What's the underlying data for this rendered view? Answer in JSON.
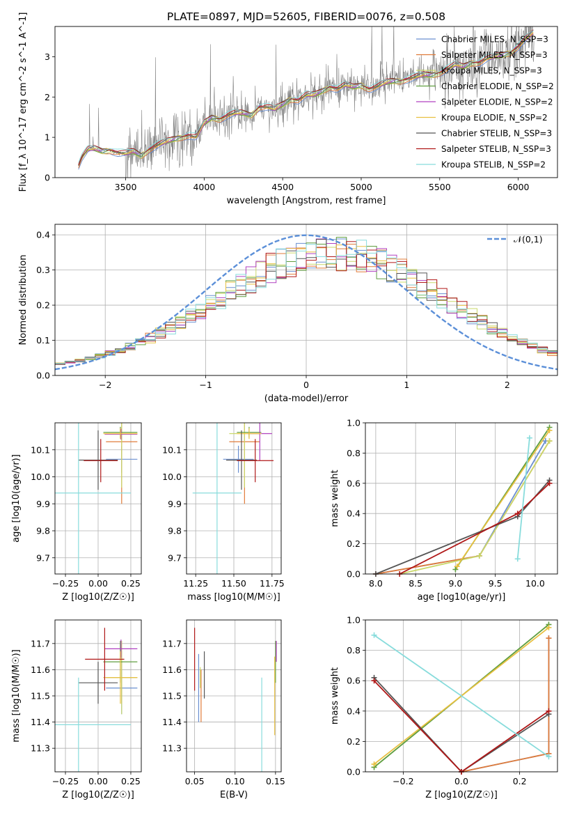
{
  "figure_title": "PLATE=0897, MJD=52605, FIBERID=0076, z=0.508",
  "colors": {
    "chabrier_miles": "#6a8fd0",
    "salpeter_miles": "#e07b39",
    "kroupa_miles": "#c9d86a",
    "chabrier_elodie": "#5f9e3f",
    "salpeter_elodie": "#b040c0",
    "kroupa_elodie": "#e8c040",
    "chabrier_stelib": "#555555",
    "salpeter_stelib": "#b01818",
    "kroupa_stelib": "#88dcdc",
    "normal": "#5b8fd8",
    "data": "#808080"
  },
  "chart_data": [
    {
      "id": "spectrum",
      "type": "line",
      "title": "PLATE=0897, MJD=52605, FIBERID=0076, z=0.508",
      "xlabel": "wavelength [Angstrom, rest frame]",
      "ylabel": "Flux [f_λ 10^-17 erg cm^-2 s^-1 A^-1]",
      "xlim": [
        3050,
        6250
      ],
      "ylim": [
        0,
        3.75
      ],
      "xticks": [
        3500,
        4000,
        4500,
        5000,
        5500,
        6000
      ],
      "yticks": [
        0,
        1,
        2,
        3
      ],
      "grid": false,
      "legend_position": "right",
      "legend": [
        "Chabrier MILES, N_SSP=3",
        "Salpeter MILES, N_SSP=3",
        "Kroupa MILES, N_SSP=3",
        "Chabrier ELODIE, N_SSP=2",
        "Salpeter ELODIE, N_SSP=2",
        "Kroupa ELODIE, N_SSP=2",
        "Chabrier STELIB, N_SSP=3",
        "Salpeter STELIB, N_SSP=3",
        "Kroupa STELIB, N_SSP=2"
      ],
      "continuum_x": [
        3200,
        3220,
        3260,
        3300,
        3350,
        3400,
        3450,
        3500,
        3550,
        3600,
        3650,
        3700,
        3750,
        3800,
        3850,
        3900,
        3950,
        4000,
        4050,
        4100,
        4150,
        4200,
        4250,
        4300,
        4350,
        4400,
        4450,
        4500,
        4550,
        4600,
        4650,
        4700,
        4750,
        4800,
        4850,
        4900,
        4950,
        5000,
        5050,
        5100,
        5150,
        5200,
        5250,
        5300,
        5350,
        5400,
        5450,
        5500,
        5550,
        5600,
        5650,
        5700,
        5750,
        5800,
        5850,
        5900,
        5950,
        6000,
        6050,
        6100
      ],
      "continuum_y": [
        0.3,
        0.5,
        0.7,
        0.72,
        0.66,
        0.68,
        0.62,
        0.6,
        0.65,
        0.55,
        0.7,
        0.8,
        0.88,
        0.95,
        1.0,
        1.05,
        1.0,
        1.35,
        1.5,
        1.45,
        1.55,
        1.6,
        1.6,
        1.55,
        1.75,
        1.75,
        1.7,
        1.82,
        1.95,
        1.92,
        2.05,
        2.05,
        2.15,
        2.25,
        2.2,
        2.3,
        2.25,
        2.3,
        2.2,
        2.25,
        2.35,
        2.4,
        2.4,
        2.45,
        2.5,
        2.55,
        2.55,
        2.6,
        2.7,
        2.8,
        2.75,
        2.85,
        2.85,
        2.95,
        3.0,
        3.05,
        3.1,
        3.25,
        3.45,
        3.6
      ]
    },
    {
      "id": "residuals",
      "type": "step",
      "xlabel": "(data-model)/error",
      "ylabel": "Normed distribution",
      "xlim": [
        -2.5,
        2.5
      ],
      "ylim": [
        0,
        0.43
      ],
      "xticks": [
        -2,
        -1,
        0,
        1,
        2
      ],
      "yticks": [
        0.0,
        0.1,
        0.2,
        0.3,
        0.4
      ],
      "grid": true,
      "legend_position": "top-right",
      "legend": [
        "𝒩(0,1)"
      ],
      "normal": {
        "mean": 0,
        "sigma": 1
      }
    },
    {
      "id": "age_vs_Z",
      "type": "errorbar",
      "xlabel": "Z [log10(Z/Z☉)]",
      "ylabel": "age [log10(age/yr)]",
      "xlim": [
        -0.33,
        0.33
      ],
      "ylim": [
        9.64,
        10.2
      ],
      "xticks": [
        -0.25,
        0.0,
        0.25
      ],
      "yticks": [
        9.7,
        9.8,
        9.9,
        10.0,
        10.1
      ],
      "grid": true,
      "points": [
        {
          "x": 0.18,
          "xerr": 0.12,
          "y": 10.065,
          "yerr": 0.05,
          "c": "chabrier_miles"
        },
        {
          "x": 0.18,
          "xerr": 0.12,
          "y": 10.13,
          "yerr": 0.23,
          "c": "salpeter_miles"
        },
        {
          "x": 0.18,
          "xerr": 0.12,
          "y": 10.16,
          "yerr": 0.2,
          "c": "kroupa_miles"
        },
        {
          "x": 0.17,
          "xerr": 0.13,
          "y": 10.165,
          "yerr": 0.02,
          "c": "chabrier_elodie"
        },
        {
          "x": 0.175,
          "xerr": 0.125,
          "y": 10.158,
          "yerr": 0.02,
          "c": "salpeter_elodie"
        },
        {
          "x": 0.17,
          "xerr": 0.13,
          "y": 10.16,
          "yerr": 0.02,
          "c": "kroupa_elodie"
        },
        {
          "x": 0.0,
          "xerr": 0.15,
          "y": 10.062,
          "yerr": 0.11,
          "c": "chabrier_stelib"
        },
        {
          "x": 0.02,
          "xerr": 0.13,
          "y": 10.06,
          "yerr": 0.08,
          "c": "salpeter_stelib"
        },
        {
          "x": -0.15,
          "xerr": 0.4,
          "y": 9.94,
          "yerr": 0.4,
          "c": "kroupa_stelib"
        }
      ]
    },
    {
      "id": "age_vs_mass",
      "type": "errorbar",
      "xlabel": "mass [log10(M/M☉)]",
      "ylabel": "",
      "xlim": [
        11.19,
        11.81
      ],
      "ylim": [
        9.64,
        10.2
      ],
      "xticks": [
        11.25,
        11.5,
        11.75
      ],
      "yticks": [
        9.7,
        9.8,
        9.9,
        10.0,
        10.1
      ],
      "grid": true,
      "points": [
        {
          "x": 11.53,
          "xerr": 0.1,
          "y": 10.065,
          "yerr": 0.05,
          "c": "chabrier_miles"
        },
        {
          "x": 11.57,
          "xerr": 0.1,
          "y": 10.13,
          "yerr": 0.23,
          "c": "salpeter_miles"
        },
        {
          "x": 11.57,
          "xerr": 0.1,
          "y": 10.16,
          "yerr": 0.2,
          "c": "kroupa_miles"
        },
        {
          "x": 11.6,
          "xerr": 0.08,
          "y": 10.165,
          "yerr": 0.02,
          "c": "chabrier_elodie"
        },
        {
          "x": 11.67,
          "xerr": 0.08,
          "y": 10.16,
          "yerr": 0.1,
          "c": "salpeter_elodie"
        },
        {
          "x": 11.6,
          "xerr": 0.08,
          "y": 10.16,
          "yerr": 0.02,
          "c": "kroupa_elodie"
        },
        {
          "x": 11.55,
          "xerr": 0.1,
          "y": 10.062,
          "yerr": 0.11,
          "c": "chabrier_stelib"
        },
        {
          "x": 11.64,
          "xerr": 0.12,
          "y": 10.06,
          "yerr": 0.08,
          "c": "salpeter_stelib"
        },
        {
          "x": 11.39,
          "xerr": 0.16,
          "y": 9.94,
          "yerr": 0.4,
          "c": "kroupa_stelib"
        }
      ]
    },
    {
      "id": "weight_vs_age",
      "type": "line",
      "xlabel": "age [log10(age/yr)]",
      "ylabel": "mass weight",
      "xlim": [
        7.87,
        10.28
      ],
      "ylim": [
        0,
        1
      ],
      "xticks": [
        8.0,
        8.5,
        9.0,
        9.5,
        10.0
      ],
      "yticks": [
        0.0,
        0.2,
        0.4,
        0.6,
        0.8,
        1.0
      ],
      "grid": true,
      "series": [
        {
          "c": "chabrier_miles",
          "x": [
            8.0,
            9.3,
            10.13
          ],
          "y": [
            0.0,
            0.12,
            0.88
          ]
        },
        {
          "c": "salpeter_miles",
          "x": [
            8.0,
            9.3,
            10.18
          ],
          "y": [
            0.0,
            0.12,
            0.88
          ]
        },
        {
          "c": "kroupa_miles",
          "x": [
            8.3,
            9.3,
            10.18
          ],
          "y": [
            0.0,
            0.12,
            0.88
          ]
        },
        {
          "c": "chabrier_elodie",
          "x": [
            9.0,
            10.18
          ],
          "y": [
            0.03,
            0.97
          ]
        },
        {
          "c": "kroupa_elodie",
          "x": [
            9.02,
            10.18
          ],
          "y": [
            0.05,
            0.95
          ]
        },
        {
          "c": "chabrier_stelib",
          "x": [
            8.0,
            9.78,
            10.18
          ],
          "y": [
            0.0,
            0.38,
            0.62
          ]
        },
        {
          "c": "salpeter_stelib",
          "x": [
            8.3,
            9.78,
            10.18
          ],
          "y": [
            0.0,
            0.4,
            0.6
          ]
        },
        {
          "c": "kroupa_stelib",
          "x": [
            9.78,
            9.93
          ],
          "y": [
            0.1,
            0.9
          ]
        }
      ]
    },
    {
      "id": "mass_vs_Z",
      "type": "errorbar",
      "xlabel": "Z [log10(Z/Z☉)]",
      "ylabel": "mass [log10(M/M☉)]",
      "xlim": [
        -0.33,
        0.33
      ],
      "ylim": [
        11.21,
        11.79
      ],
      "xticks": [
        -0.25,
        0.0,
        0.25
      ],
      "yticks": [
        11.3,
        11.4,
        11.5,
        11.6,
        11.7
      ],
      "grid": true,
      "points": [
        {
          "x": 0.18,
          "xerr": 0.12,
          "y": 11.53,
          "yerr": 0.1,
          "c": "chabrier_miles"
        },
        {
          "x": 0.18,
          "xerr": 0.12,
          "y": 11.57,
          "yerr": 0.1,
          "c": "salpeter_miles"
        },
        {
          "x": 0.18,
          "xerr": 0.12,
          "y": 11.57,
          "yerr": 0.14,
          "c": "kroupa_miles"
        },
        {
          "x": 0.17,
          "xerr": 0.13,
          "y": 11.63,
          "yerr": 0.08,
          "c": "chabrier_elodie"
        },
        {
          "x": 0.175,
          "xerr": 0.125,
          "y": 11.68,
          "yerr": 0.035,
          "c": "salpeter_elodie"
        },
        {
          "x": 0.17,
          "xerr": 0.13,
          "y": 11.57,
          "yerr": 0.1,
          "c": "kroupa_elodie"
        },
        {
          "x": 0.0,
          "xerr": 0.15,
          "y": 11.55,
          "yerr": 0.08,
          "c": "chabrier_stelib"
        },
        {
          "x": 0.05,
          "xerr": 0.15,
          "y": 11.64,
          "yerr": 0.12,
          "c": "salpeter_stelib"
        },
        {
          "x": -0.15,
          "xerr": 0.4,
          "y": 11.39,
          "yerr": 0.18,
          "c": "kroupa_stelib"
        }
      ]
    },
    {
      "id": "mass_vs_ebv",
      "type": "errorbar",
      "xlabel": "E(B-V)",
      "ylabel": "",
      "xlim": [
        0.04,
        0.157
      ],
      "ylim": [
        11.21,
        11.79
      ],
      "xticks": [
        0.05,
        0.1,
        0.15
      ],
      "yticks": [
        11.3,
        11.4,
        11.5,
        11.6,
        11.7
      ],
      "grid": true,
      "points": [
        {
          "x": 0.055,
          "xerr": 0,
          "y": 11.53,
          "yerr": 0.13,
          "c": "chabrier_miles"
        },
        {
          "x": 0.058,
          "xerr": 0,
          "y": 11.5,
          "yerr": 0.1,
          "c": "salpeter_miles"
        },
        {
          "x": 0.057,
          "xerr": 0,
          "y": 11.57,
          "yerr": 0.04,
          "c": "kroupa_miles"
        },
        {
          "x": 0.15,
          "xerr": 0,
          "y": 11.63,
          "yerr": 0.08,
          "c": "chabrier_elodie"
        },
        {
          "x": 0.151,
          "xerr": 0,
          "y": 11.67,
          "yerr": 0.04,
          "c": "salpeter_elodie"
        },
        {
          "x": 0.149,
          "xerr": 0,
          "y": 11.5,
          "yerr": 0.15,
          "c": "kroupa_elodie"
        },
        {
          "x": 0.062,
          "xerr": 0,
          "y": 11.58,
          "yerr": 0.09,
          "c": "chabrier_stelib"
        },
        {
          "x": 0.05,
          "xerr": 0,
          "y": 11.64,
          "yerr": 0.12,
          "c": "salpeter_stelib"
        },
        {
          "x": 0.133,
          "xerr": 0,
          "y": 11.39,
          "yerr": 0.18,
          "c": "kroupa_stelib"
        }
      ]
    },
    {
      "id": "weight_vs_Z",
      "type": "line",
      "xlabel": "Z [log10(Z/Z☉)]",
      "ylabel": "mass weight",
      "xlim": [
        -0.33,
        0.33
      ],
      "ylim": [
        0,
        1
      ],
      "xticks": [
        -0.2,
        0.0,
        0.2
      ],
      "yticks": [
        0.0,
        0.2,
        0.4,
        0.6,
        0.8,
        1.0
      ],
      "grid": true,
      "series": [
        {
          "c": "chabrier_miles",
          "x": [
            0.0,
            0.3,
            0.3
          ],
          "y": [
            0.0,
            0.12,
            0.88
          ]
        },
        {
          "c": "salpeter_miles",
          "x": [
            0.0,
            0.3,
            0.3
          ],
          "y": [
            0.0,
            0.12,
            0.88
          ]
        },
        {
          "c": "chabrier_elodie",
          "x": [
            -0.3,
            0.3
          ],
          "y": [
            0.03,
            0.97
          ]
        },
        {
          "c": "kroupa_elodie",
          "x": [
            -0.3,
            0.3
          ],
          "y": [
            0.05,
            0.95
          ]
        },
        {
          "c": "chabrier_stelib",
          "x": [
            -0.3,
            0.0,
            0.3
          ],
          "y": [
            0.62,
            0.0,
            0.38
          ]
        },
        {
          "c": "salpeter_stelib",
          "x": [
            -0.3,
            0.0,
            0.3
          ],
          "y": [
            0.6,
            0.0,
            0.4
          ]
        },
        {
          "c": "kroupa_stelib",
          "x": [
            -0.3,
            0.3
          ],
          "y": [
            0.9,
            0.1
          ]
        }
      ]
    }
  ]
}
